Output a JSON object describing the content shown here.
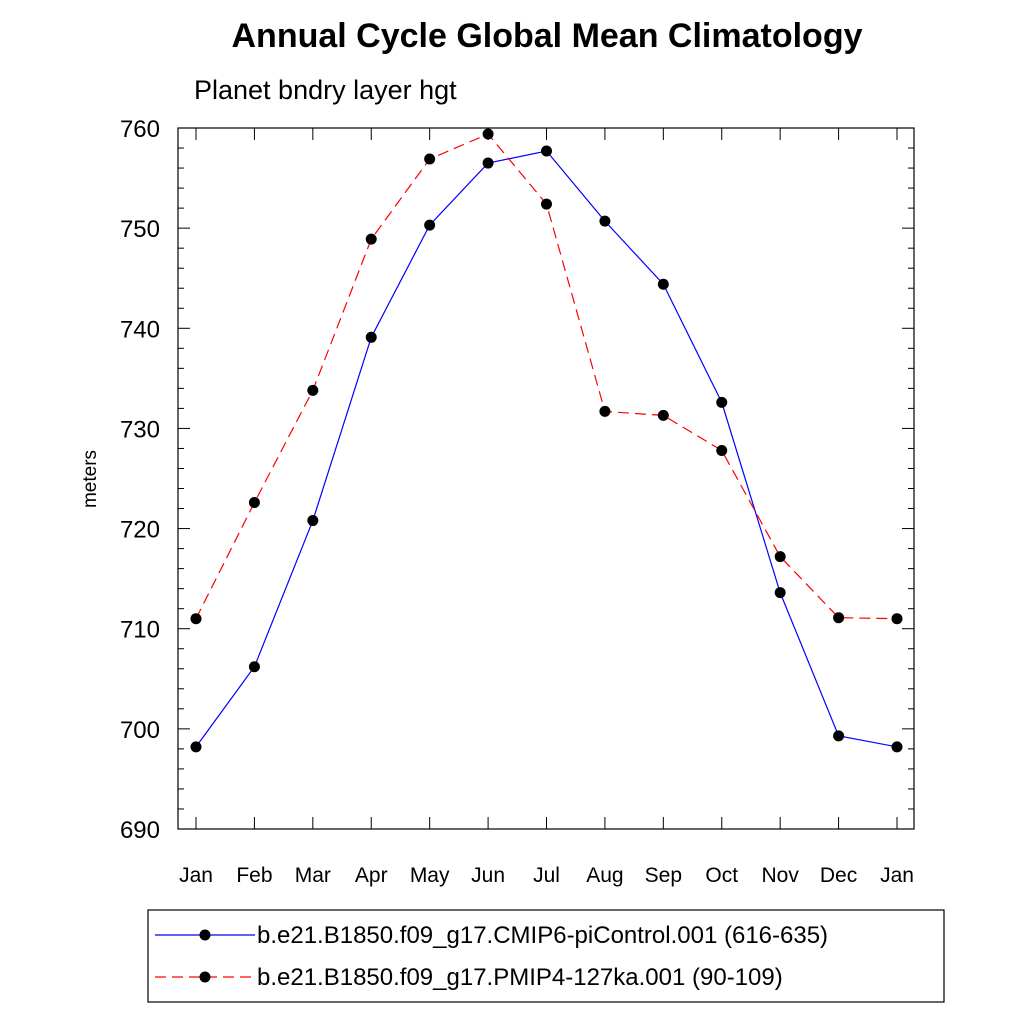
{
  "chart_data": {
    "type": "line",
    "title": "Annual Cycle Global Mean Climatology",
    "subtitle": "Planet bndry layer hgt",
    "xlabel": "",
    "ylabel": "meters",
    "categories": [
      "Jan",
      "Feb",
      "Mar",
      "Apr",
      "May",
      "Jun",
      "Jul",
      "Aug",
      "Sep",
      "Oct",
      "Nov",
      "Dec",
      "Jan"
    ],
    "ylim": [
      690,
      760
    ],
    "yticks": [
      "690",
      "700",
      "710",
      "720",
      "730",
      "740",
      "750",
      "760"
    ],
    "grid": false,
    "legend_position": "bottom",
    "series": [
      {
        "name": "b.e21.B1850.f09_g17.CMIP6-piControl.001 (616-635)",
        "color": "#0000ff",
        "dash": "solid",
        "values": [
          698.2,
          706.2,
          720.8,
          739.1,
          750.3,
          756.5,
          757.7,
          750.7,
          744.4,
          732.6,
          713.6,
          699.3,
          698.2
        ]
      },
      {
        "name": "b.e21.B1850.f09_g17.PMIP4-127ka.001 (90-109)",
        "color": "#ff0000",
        "dash": "dashed",
        "values": [
          711.0,
          722.6,
          733.8,
          748.9,
          756.9,
          759.4,
          752.4,
          731.7,
          731.3,
          727.8,
          717.2,
          711.1,
          711.0
        ]
      }
    ]
  }
}
